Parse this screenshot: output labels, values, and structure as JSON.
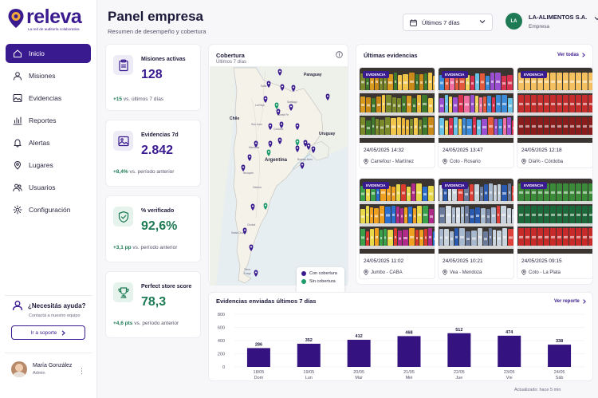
{
  "brand": {
    "name": "releva",
    "tagline": "La red de auditoría colaborativa"
  },
  "nav": [
    {
      "label": "Inicio",
      "icon": "home-icon",
      "active": true
    },
    {
      "label": "Misiones",
      "icon": "users-icon"
    },
    {
      "label": "Evidencias",
      "icon": "image-icon"
    },
    {
      "label": "Reportes",
      "icon": "chart-icon"
    },
    {
      "label": "Alertas",
      "icon": "bell-icon"
    },
    {
      "label": "Lugares",
      "icon": "pin-icon"
    },
    {
      "label": "Usuarios",
      "icon": "people-icon"
    },
    {
      "label": "Configuración",
      "icon": "gear-icon"
    }
  ],
  "help": {
    "title": "¿Necesitás ayuda?",
    "subtitle": "Contactá a nuestro equipo",
    "button": "Ir a soporte"
  },
  "user": {
    "name": "María González",
    "role": "Admin"
  },
  "header": {
    "title": "Panel empresa",
    "subtitle": "Resumen de desempeño y cobertura",
    "date_range": "Últimos 7 días",
    "company_initials": "LA",
    "company_name": "LA-ALIMENTOS S.A.",
    "company_type": "Empresa"
  },
  "kpis": [
    {
      "label": "Misiones activas",
      "value": "128",
      "delta": "+15",
      "delta_text": "vs. últimos 7 días",
      "color": "#3a1a8f",
      "icon": "clipboard-icon"
    },
    {
      "label": "Evidencias 7d",
      "value": "2.842",
      "delta": "+8,4%",
      "delta_text": "vs. período anterior",
      "color": "#3a1a8f",
      "icon": "photo-icon"
    },
    {
      "label": "% verificado",
      "value": "92,6%",
      "delta": "+3,1 pp",
      "delta_text": "vs. período anterior",
      "color": "#1d7a55",
      "icon": "shield-check-icon"
    },
    {
      "label": "Perfect store score",
      "value": "78,3",
      "delta": "+4,6 pts",
      "delta_text": "vs. período anterior",
      "color": "#1d7a55",
      "icon": "trophy-icon"
    }
  ],
  "coverage": {
    "title": "Cobertura",
    "subtitle": "Últimos 7 días",
    "legend_covered": "Con cobertura",
    "legend_uncovered": "Sin cobertura",
    "color_covered": "#3a1a8f",
    "color_uncovered": "#1d9a6c",
    "map_labels": {
      "paraguay": "Paraguay",
      "chile": "Chile",
      "argentina": "Argentina",
      "uruguay": "Uruguay"
    }
  },
  "evidence": {
    "title": "Últimas evidencias",
    "link": "Ver todas",
    "badge": "EVIDENCIA",
    "items": [
      {
        "date": "24/05/2025 14:32",
        "place": "Carrefour - Martínez",
        "photo": "oil"
      },
      {
        "date": "24/05/2025 13:47",
        "place": "Coto - Rosario",
        "photo": "drinks"
      },
      {
        "date": "24/05/2025 12:18",
        "place": "Día% - Córdoba",
        "photo": "sauce"
      },
      {
        "date": "24/05/2025 11:02",
        "place": "Jumbo - CABA",
        "photo": "snacks"
      },
      {
        "date": "24/05/2025 10:21",
        "place": "Vea - Mendoza",
        "photo": "cans"
      },
      {
        "date": "24/05/2025 09:15",
        "place": "Coto - La Plata",
        "photo": "sodas"
      }
    ]
  },
  "chart_section": {
    "title": "Evidencias enviadas últimos 7 días",
    "link": "Ver reporte"
  },
  "chart_data": {
    "type": "bar",
    "categories": [
      "18/05",
      "19/05",
      "20/05",
      "21/05",
      "22/05",
      "23/05",
      "24/05"
    ],
    "days": [
      "Dom",
      "Lun",
      "Mar",
      "Mié",
      "Jue",
      "Vie",
      "Sáb"
    ],
    "values": [
      286,
      352,
      412,
      468,
      512,
      474,
      338
    ],
    "yticks": [
      0,
      200,
      400,
      600,
      800
    ],
    "ylim": [
      0,
      800
    ],
    "bar_color": "#34127f"
  },
  "footer": {
    "updated": "Actualizado: hace 5 min"
  }
}
